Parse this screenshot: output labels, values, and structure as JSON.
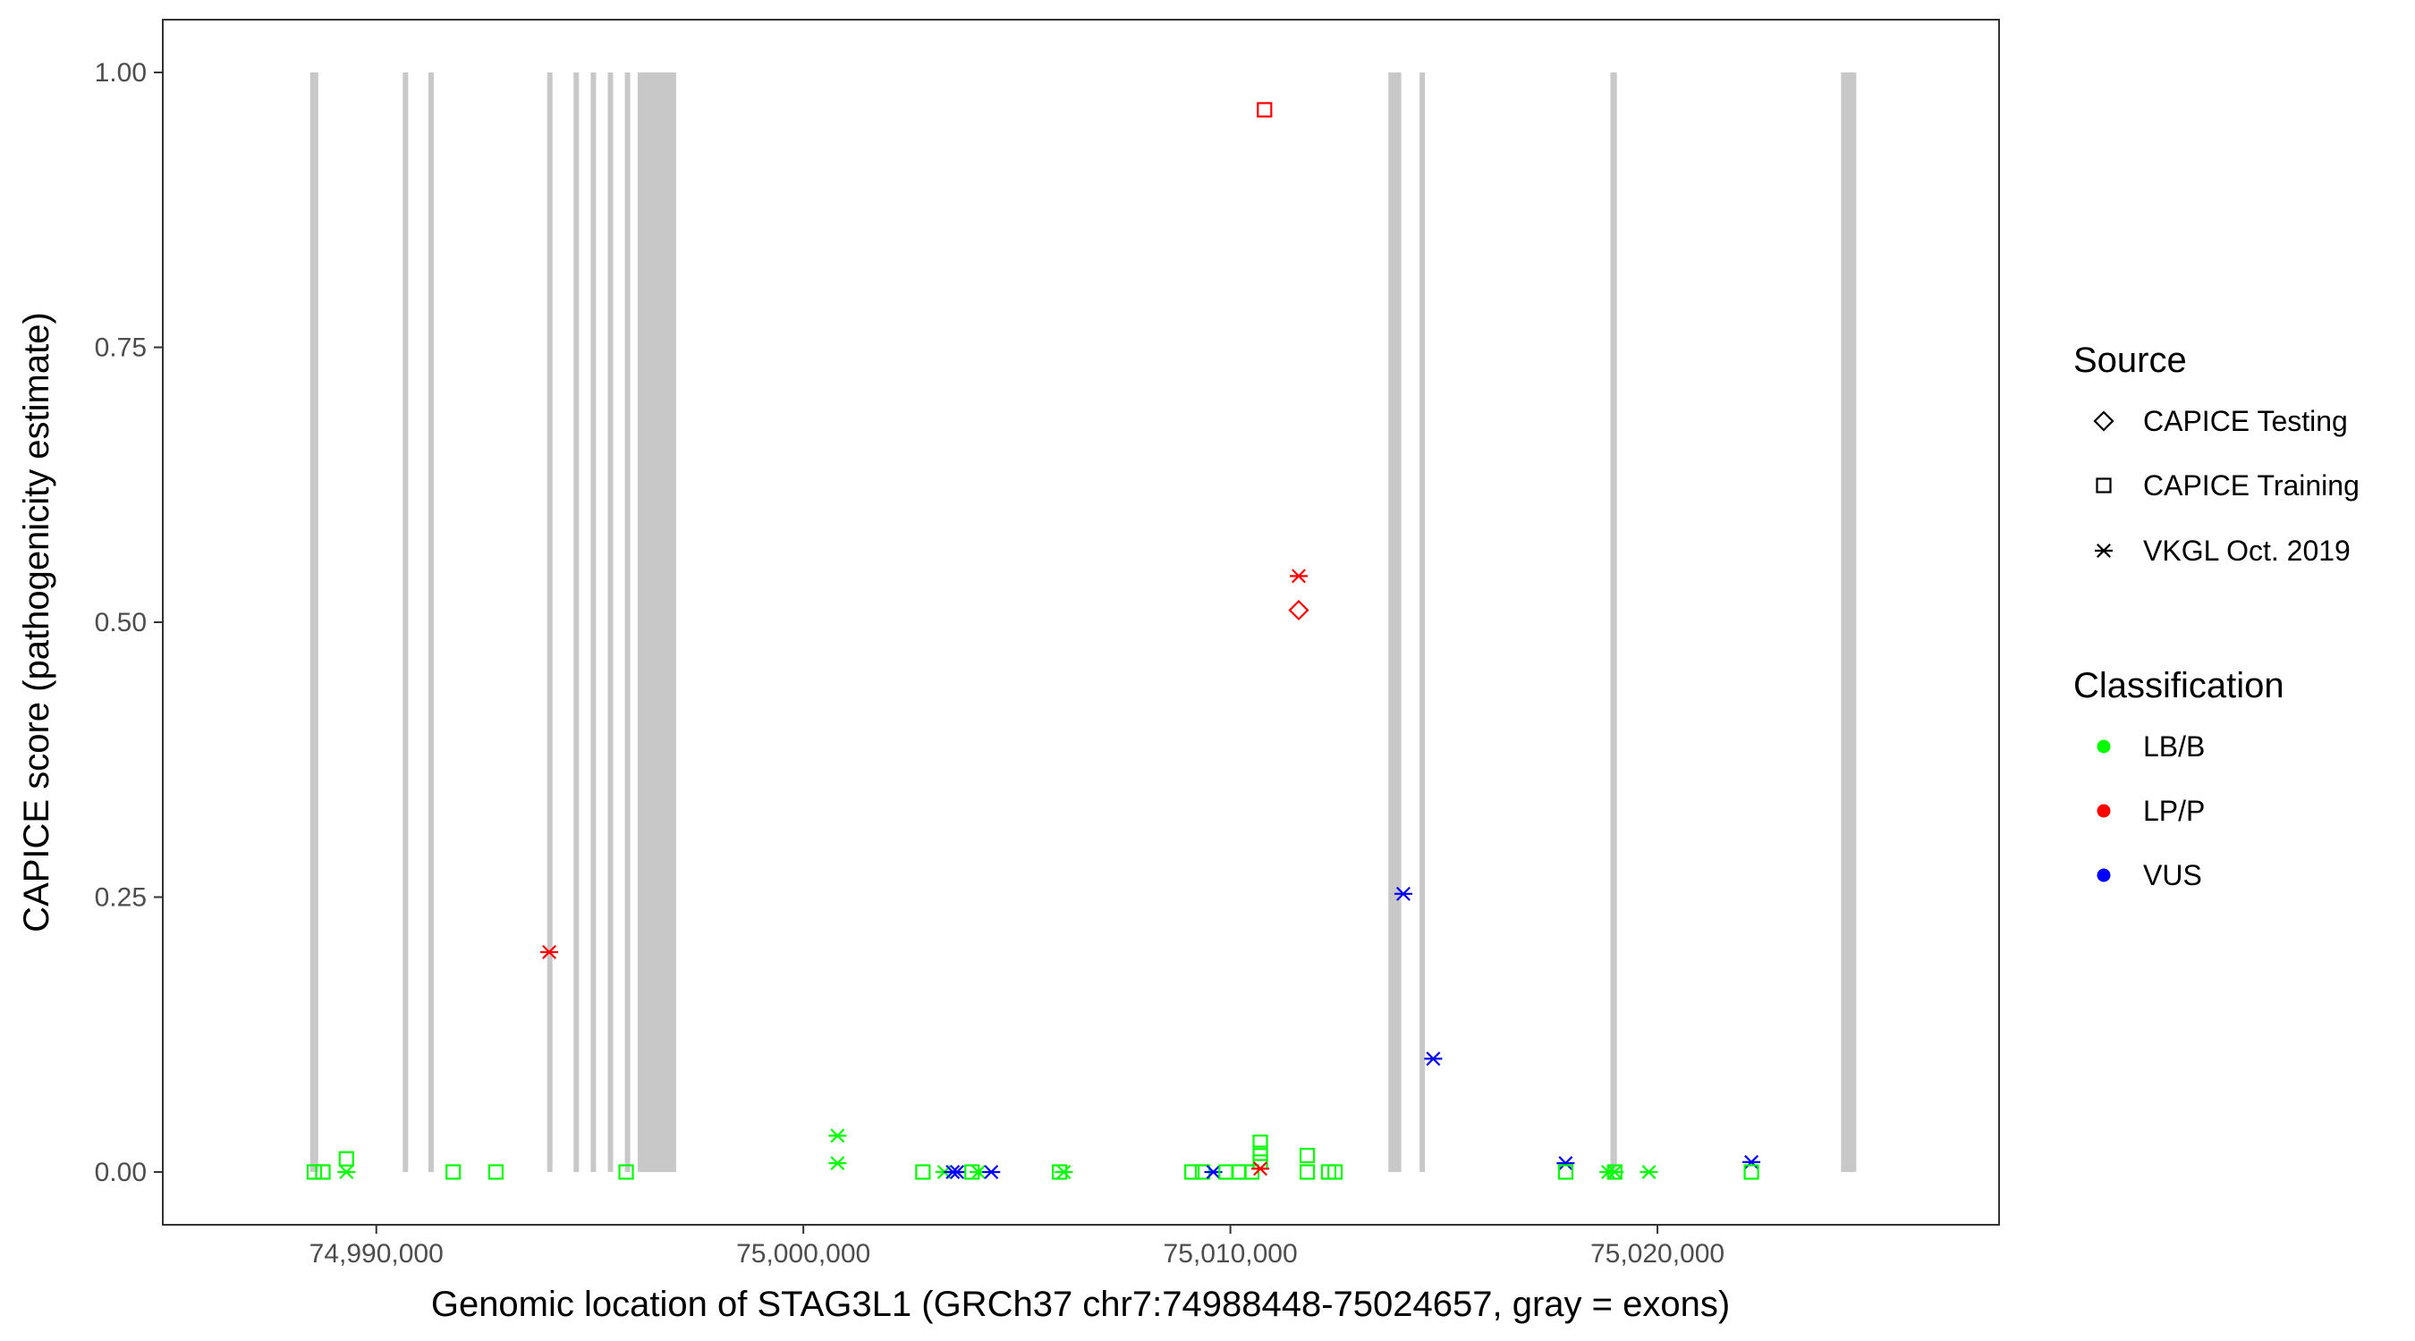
{
  "chart_data": {
    "type": "scatter",
    "title": "",
    "xlabel": "Genomic location of STAG3L1 (GRCh37 chr7:74988448-75024657, gray = exons)",
    "ylabel": "CAPICE score (pathogenicity estimate)",
    "xlim": [
      74985000,
      75028000
    ],
    "ylim": [
      -0.048,
      1.048
    ],
    "x_ticks": [
      74990000,
      75000000,
      75010000,
      75020000
    ],
    "x_tick_labels": [
      "74,990,000",
      "75,000,000",
      "75,010,000",
      "75,020,000"
    ],
    "y_ticks": [
      0,
      0.25,
      0.5,
      0.75,
      1.0
    ],
    "y_tick_labels": [
      "0.00",
      "0.25",
      "0.50",
      "0.75",
      "1.00"
    ],
    "grid": false,
    "legend_position": "right",
    "exon_color": "#c8c8c8",
    "exons": [
      [
        74988450,
        74988640
      ],
      [
        74990620,
        74990700
      ],
      [
        74991220,
        74991320
      ],
      [
        74994000,
        74994120
      ],
      [
        74994620,
        74994720
      ],
      [
        74995020,
        74995120
      ],
      [
        74995420,
        74995520
      ],
      [
        74995820,
        74995940
      ],
      [
        74996120,
        74997020
      ],
      [
        75013700,
        75014000
      ],
      [
        75014430,
        75014510
      ],
      [
        75018900,
        75019050
      ],
      [
        75024300,
        75024657
      ]
    ],
    "legends": {
      "source": {
        "title": "Source",
        "entries": [
          {
            "label": "CAPICE Testing",
            "shape": "diamond"
          },
          {
            "label": "CAPICE Training",
            "shape": "square"
          },
          {
            "label": "VKGL Oct. 2019",
            "shape": "asterisk"
          }
        ]
      },
      "classification": {
        "title": "Classification",
        "entries": [
          {
            "label": "LB/B",
            "color": "#00ff00"
          },
          {
            "label": "LP/P",
            "color": "#ff0000"
          },
          {
            "label": "VUS",
            "color": "#0000ff"
          }
        ]
      }
    },
    "points": [
      {
        "x": 74988550,
        "y": 0.0,
        "source": "CAPICE Training",
        "class": "LB/B"
      },
      {
        "x": 74988750,
        "y": 0.0,
        "source": "CAPICE Training",
        "class": "LB/B"
      },
      {
        "x": 74989300,
        "y": 0.012,
        "source": "CAPICE Training",
        "class": "LB/B"
      },
      {
        "x": 74989300,
        "y": 0.0,
        "source": "VKGL Oct. 2019",
        "class": "LB/B"
      },
      {
        "x": 74991800,
        "y": 0.0,
        "source": "CAPICE Training",
        "class": "LB/B"
      },
      {
        "x": 74992800,
        "y": 0.0,
        "source": "CAPICE Training",
        "class": "LB/B"
      },
      {
        "x": 74994050,
        "y": 0.2,
        "source": "VKGL Oct. 2019",
        "class": "LP/P"
      },
      {
        "x": 74995850,
        "y": 0.0,
        "source": "CAPICE Training",
        "class": "LB/B"
      },
      {
        "x": 75000800,
        "y": 0.033,
        "source": "VKGL Oct. 2019",
        "class": "LB/B"
      },
      {
        "x": 75000800,
        "y": 0.008,
        "source": "VKGL Oct. 2019",
        "class": "LB/B"
      },
      {
        "x": 75002800,
        "y": 0.0,
        "source": "CAPICE Training",
        "class": "LB/B"
      },
      {
        "x": 75003300,
        "y": 0.0,
        "source": "VKGL Oct. 2019",
        "class": "LB/B"
      },
      {
        "x": 75003500,
        "y": 0.0,
        "source": "VKGL Oct. 2019",
        "class": "VUS"
      },
      {
        "x": 75003600,
        "y": 0.0,
        "source": "VKGL Oct. 2019",
        "class": "VUS"
      },
      {
        "x": 75003950,
        "y": 0.0,
        "source": "CAPICE Training",
        "class": "LB/B"
      },
      {
        "x": 75004100,
        "y": 0.0,
        "source": "VKGL Oct. 2019",
        "class": "LB/B"
      },
      {
        "x": 75004400,
        "y": 0.0,
        "source": "VKGL Oct. 2019",
        "class": "VUS"
      },
      {
        "x": 75006000,
        "y": 0.0,
        "source": "CAPICE Training",
        "class": "LB/B"
      },
      {
        "x": 75006100,
        "y": 0.0,
        "source": "VKGL Oct. 2019",
        "class": "LB/B"
      },
      {
        "x": 75009100,
        "y": 0.0,
        "source": "CAPICE Training",
        "class": "LB/B"
      },
      {
        "x": 75009350,
        "y": 0.0,
        "source": "CAPICE Training",
        "class": "LB/B"
      },
      {
        "x": 75009600,
        "y": 0.0,
        "source": "VKGL Oct. 2019",
        "class": "VUS"
      },
      {
        "x": 75009900,
        "y": 0.0,
        "source": "CAPICE Training",
        "class": "LB/B"
      },
      {
        "x": 75010200,
        "y": 0.0,
        "source": "CAPICE Training",
        "class": "LB/B"
      },
      {
        "x": 75010500,
        "y": 0.0,
        "source": "CAPICE Training",
        "class": "LB/B"
      },
      {
        "x": 75010700,
        "y": 0.027,
        "source": "CAPICE Training",
        "class": "LB/B"
      },
      {
        "x": 75010700,
        "y": 0.017,
        "source": "CAPICE Training",
        "class": "LB/B"
      },
      {
        "x": 75010700,
        "y": 0.009,
        "source": "CAPICE Training",
        "class": "LB/B"
      },
      {
        "x": 75010700,
        "y": 0.003,
        "source": "VKGL Oct. 2019",
        "class": "LP/P"
      },
      {
        "x": 75010800,
        "y": 0.966,
        "source": "CAPICE Training",
        "class": "LP/P"
      },
      {
        "x": 75011600,
        "y": 0.542,
        "source": "VKGL Oct. 2019",
        "class": "LP/P"
      },
      {
        "x": 75011600,
        "y": 0.511,
        "source": "CAPICE Testing",
        "class": "LP/P"
      },
      {
        "x": 75011800,
        "y": 0.015,
        "source": "CAPICE Training",
        "class": "LB/B"
      },
      {
        "x": 75011800,
        "y": 0.0,
        "source": "CAPICE Training",
        "class": "LB/B"
      },
      {
        "x": 75012300,
        "y": 0.0,
        "source": "CAPICE Training",
        "class": "LB/B"
      },
      {
        "x": 75012450,
        "y": 0.0,
        "source": "CAPICE Training",
        "class": "LB/B"
      },
      {
        "x": 75014050,
        "y": 0.253,
        "source": "VKGL Oct. 2019",
        "class": "VUS"
      },
      {
        "x": 75014750,
        "y": 0.103,
        "source": "VKGL Oct. 2019",
        "class": "VUS"
      },
      {
        "x": 75017850,
        "y": 0.008,
        "source": "VKGL Oct. 2019",
        "class": "VUS"
      },
      {
        "x": 75017850,
        "y": 0.0,
        "source": "CAPICE Training",
        "class": "LB/B"
      },
      {
        "x": 75018850,
        "y": 0.0,
        "source": "VKGL Oct. 2019",
        "class": "LB/B"
      },
      {
        "x": 75019000,
        "y": 0.0,
        "source": "VKGL Oct. 2019",
        "class": "LB/B"
      },
      {
        "x": 75019000,
        "y": 0.0,
        "source": "CAPICE Training",
        "class": "LB/B"
      },
      {
        "x": 75019800,
        "y": 0.0,
        "source": "VKGL Oct. 2019",
        "class": "LB/B"
      },
      {
        "x": 75022200,
        "y": 0.009,
        "source": "VKGL Oct. 2019",
        "class": "VUS"
      },
      {
        "x": 75022200,
        "y": 0.0,
        "source": "CAPICE Training",
        "class": "LB/B"
      }
    ]
  }
}
